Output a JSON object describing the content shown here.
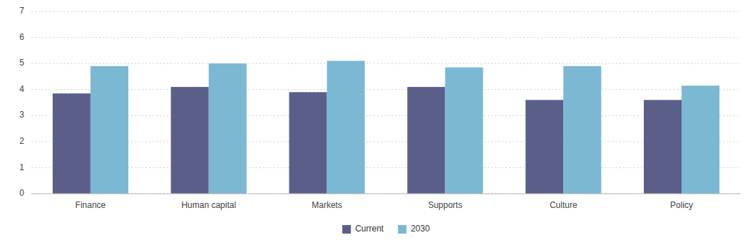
{
  "chart_data": {
    "type": "bar",
    "categories": [
      "Finance",
      "Human capital",
      "Markets",
      "Supports",
      "Culture",
      "Policy"
    ],
    "series": [
      {
        "name": "Current",
        "color": "#5a5f8a",
        "values": [
          3.85,
          4.1,
          3.9,
          4.1,
          3.6,
          3.6
        ]
      },
      {
        "name": "2030",
        "color": "#7ab8d4",
        "values": [
          4.9,
          5.0,
          5.1,
          4.85,
          4.9,
          4.15
        ]
      }
    ],
    "ylim": [
      0,
      7
    ],
    "yticks": [
      0,
      1,
      2,
      3,
      4,
      5,
      6,
      7
    ],
    "grid": true,
    "legend": "bottom"
  }
}
